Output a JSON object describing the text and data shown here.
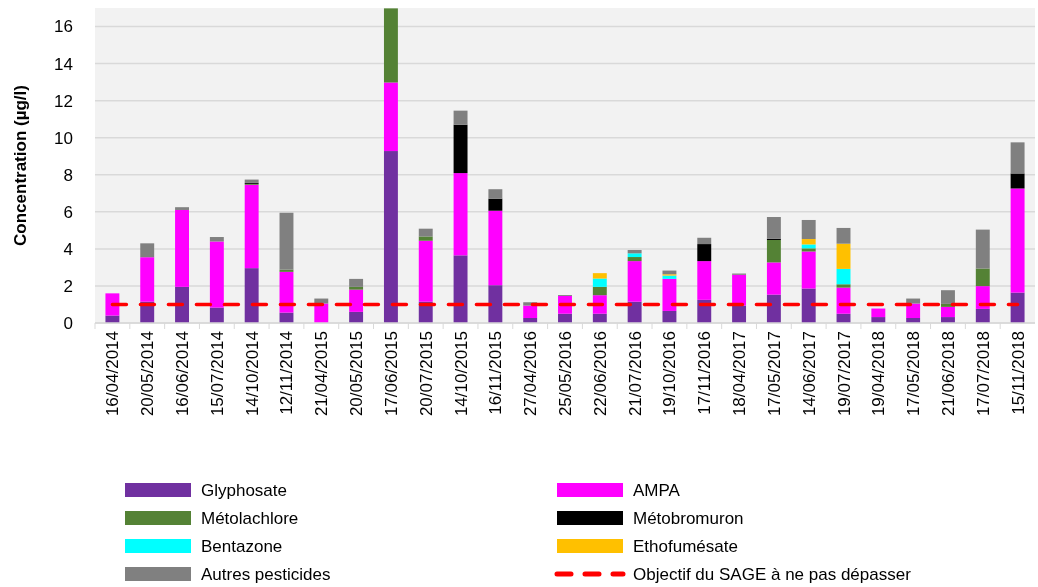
{
  "chart_data": {
    "type": "bar",
    "stacked": true,
    "ylabel": "Concentration (µg/l)",
    "categories": [
      "16/04/2014",
      "20/05/2014",
      "16/06/2014",
      "15/07/2014",
      "14/10/2014",
      "12/11/2014",
      "21/04/2015",
      "20/05/2015",
      "17/06/2015",
      "20/07/2015",
      "14/10/2015",
      "16/11/2015",
      "27/04/2016",
      "25/05/2016",
      "22/06/2016",
      "21/07/2016",
      "19/10/2016",
      "17/11/2016",
      "18/04/2017",
      "17/05/2017",
      "14/06/2017",
      "19/07/2017",
      "19/04/2018",
      "17/05/2018",
      "21/06/2018",
      "17/07/2018",
      "15/11/2018"
    ],
    "series": [
      {
        "name": "Glyphosate",
        "color": "#7030a0",
        "values": [
          0.4,
          1.15,
          1.95,
          0.83,
          2.96,
          0.56,
          null,
          0.6,
          9.28,
          1.15,
          3.65,
          2.04,
          0.27,
          0.5,
          0.5,
          1.15,
          0.65,
          1.25,
          0.94,
          1.53,
          1.86,
          0.5,
          0.32,
          0.27,
          0.32,
          0.76,
          1.64
        ]
      },
      {
        "name": "AMPA",
        "color": "#ff00ff",
        "values": [
          1.2,
          2.4,
          4.15,
          3.57,
          4.5,
          2.2,
          1.05,
          1.2,
          3.7,
          3.29,
          4.44,
          4.02,
          0.67,
          0.96,
          1.0,
          2.19,
          1.73,
          2.09,
          1.66,
          1.74,
          2.0,
          1.41,
          0.46,
          0.78,
          0.55,
          1.23,
          5.62
        ]
      },
      {
        "name": "Métolachlore",
        "color": "#548235",
        "values": [
          null,
          null,
          null,
          null,
          0.05,
          0.12,
          null,
          0.15,
          4.0,
          0.23,
          null,
          null,
          null,
          null,
          0.45,
          0.22,
          null,
          null,
          null,
          1.21,
          0.17,
          0.18,
          null,
          null,
          0.16,
          0.95,
          null
        ]
      },
      {
        "name": "Métobromuron",
        "color": "#000000",
        "values": [
          null,
          null,
          null,
          null,
          0.05,
          null,
          null,
          null,
          null,
          null,
          2.61,
          0.65,
          null,
          null,
          null,
          null,
          null,
          0.92,
          null,
          0.07,
          null,
          null,
          null,
          null,
          null,
          null,
          0.81
        ]
      },
      {
        "name": "Bentazone",
        "color": "#00ffff",
        "values": [
          null,
          null,
          null,
          null,
          null,
          null,
          null,
          null,
          null,
          null,
          null,
          null,
          null,
          null,
          0.45,
          0.2,
          0.18,
          null,
          null,
          null,
          0.21,
          0.83,
          null,
          null,
          null,
          null,
          null
        ]
      },
      {
        "name": "Ethofumésate",
        "color": "#ffc000",
        "values": [
          null,
          null,
          null,
          null,
          null,
          null,
          null,
          null,
          null,
          null,
          null,
          null,
          null,
          null,
          0.29,
          null,
          0.07,
          null,
          null,
          null,
          0.29,
          1.36,
          null,
          null,
          null,
          null,
          null
        ]
      },
      {
        "name": "Autres pesticides",
        "color": "#808080",
        "values": [
          null,
          0.75,
          0.15,
          0.24,
          0.18,
          3.07,
          0.27,
          0.43,
          null,
          0.42,
          0.76,
          0.51,
          0.18,
          0.05,
          null,
          0.18,
          0.2,
          0.34,
          0.07,
          1.17,
          1.03,
          0.85,
          null,
          0.27,
          0.74,
          2.1,
          1.68
        ]
      },
      {
        "name": "Objectif du SAGE à ne pas dépasser",
        "type": "line",
        "color": "#ff0000",
        "line_style": "dashed",
        "marker": "none",
        "values": [
          1,
          1,
          1,
          1,
          1,
          1,
          1,
          1,
          1,
          1,
          1,
          1,
          1,
          1,
          1,
          1,
          1,
          1,
          1,
          1,
          1,
          1,
          1,
          1,
          1,
          1,
          1
        ]
      }
    ],
    "ylim": [
      0,
      17
    ],
    "yticks": [
      0,
      2,
      4,
      6,
      8,
      10,
      12,
      14,
      16
    ],
    "grid": "y",
    "legend": "bottom"
  }
}
